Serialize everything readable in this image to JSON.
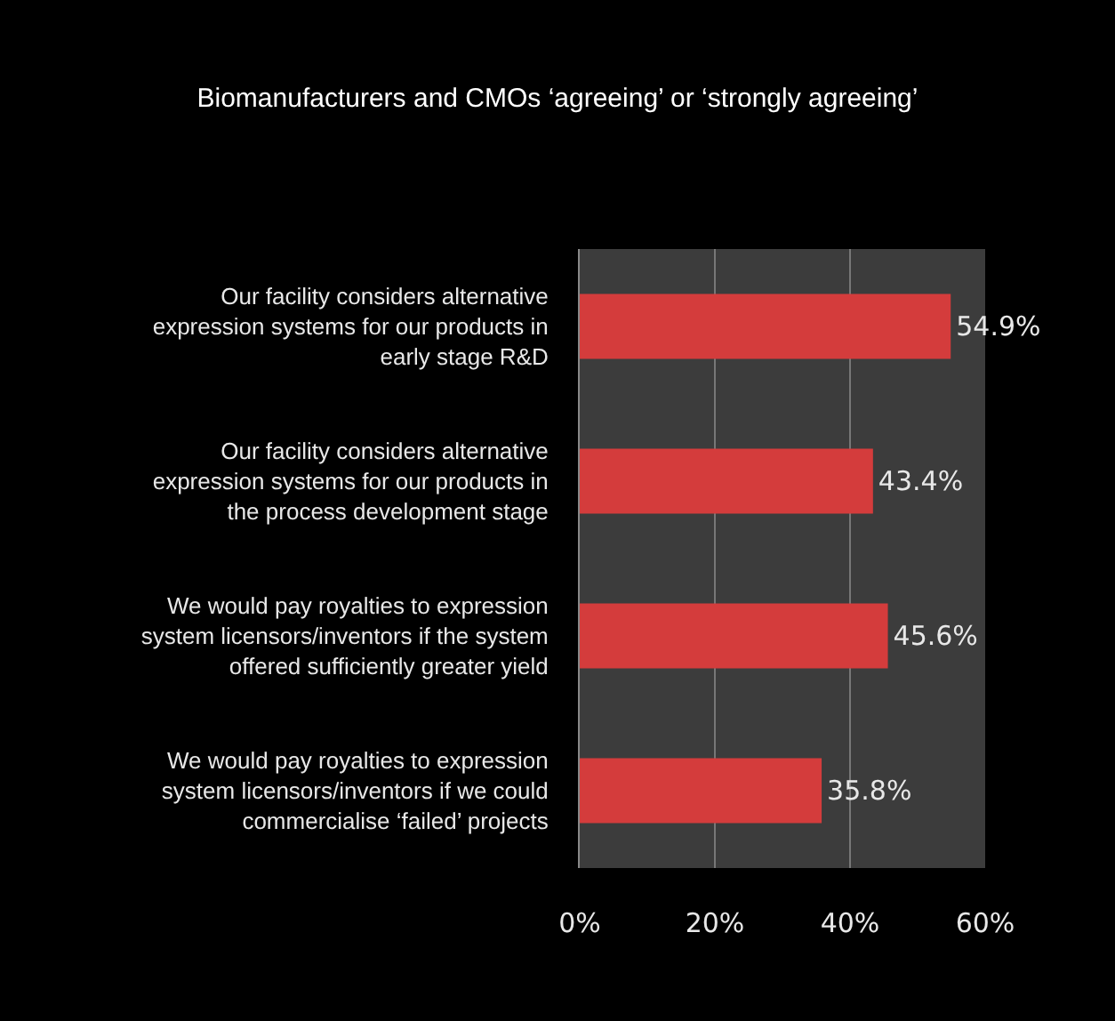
{
  "chart_data": {
    "type": "bar",
    "orientation": "horizontal",
    "title": "Biomanufacturers and CMOs ‘agreeing’ or ‘strongly agreeing’",
    "categories": [
      "Our facility considers alternative expression systems for our products in early stage R&D",
      "Our facility considers alternative expression systems for our products in the process development stage",
      "We would pay royalties to expression system licensors/inventors if the system offered sufficiently greater yield",
      "We would pay royalties to expression system licensors/inventors if we could commercialise ‘failed’ projects"
    ],
    "values": [
      54.9,
      43.4,
      45.6,
      35.8
    ],
    "value_labels": [
      "54.9%",
      "43.4%",
      "45.6%",
      "35.8%"
    ],
    "color": "#d43c3c",
    "xlim": [
      0,
      60
    ],
    "xticks": [
      {
        "value": 0,
        "label": "0%"
      },
      {
        "value": 20,
        "label": "20%"
      },
      {
        "value": 40,
        "label": "40%"
      },
      {
        "value": 60,
        "label": "60%"
      }
    ],
    "grid": "x"
  }
}
